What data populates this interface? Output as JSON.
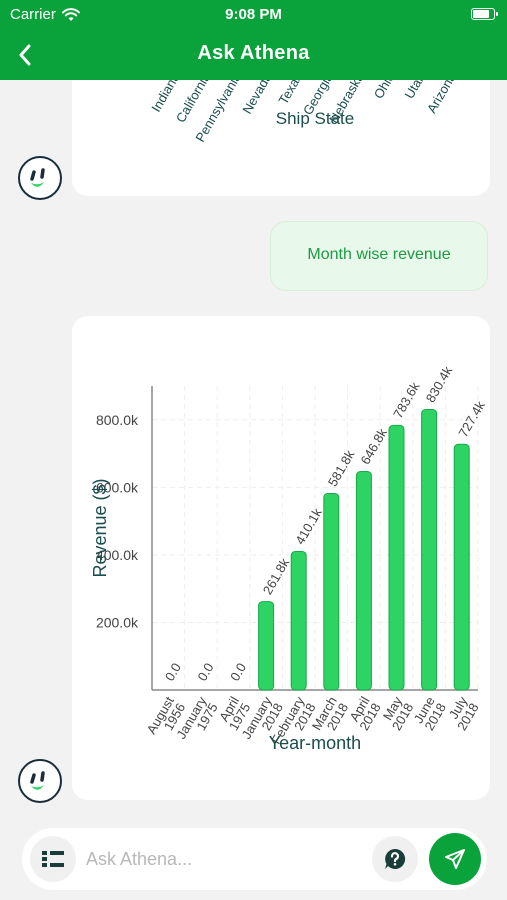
{
  "status_bar": {
    "carrier": "Carrier",
    "time": "9:08 PM",
    "battery_level": 0.85
  },
  "nav": {
    "title": "Ask Athena",
    "back_icon": "chevron-left-icon"
  },
  "colors": {
    "brand": "#0aa23b",
    "bar_fill": "#2ed463",
    "bar_stroke": "#18a847",
    "axis_text": "#1a4d4d"
  },
  "messages": {
    "user_query": "Month wise revenue"
  },
  "top_chart": {
    "type": "bar",
    "xlabel": "Ship State",
    "categories": [
      "Indiana",
      "California",
      "Pennsylvania",
      "Nevada",
      "Texas",
      "Georgia",
      "Nebraska",
      "Ohio",
      "Utah",
      "Arizona"
    ],
    "show_bars": [
      true,
      true,
      true,
      true,
      true,
      true,
      true,
      false,
      false,
      false
    ]
  },
  "chart_data": {
    "type": "bar",
    "categories": [
      "August 1956",
      "January 1975",
      "April 1975",
      "January 2018",
      "February 2018",
      "March 2018",
      "April 2018",
      "May 2018",
      "June 2018",
      "July 2018"
    ],
    "category_lines": [
      [
        "August",
        "1956"
      ],
      [
        "January",
        "1975"
      ],
      [
        "April",
        "1975"
      ],
      [
        "January",
        "2018"
      ],
      [
        "February",
        "2018"
      ],
      [
        "March",
        "2018"
      ],
      [
        "April",
        "2018"
      ],
      [
        "May",
        "2018"
      ],
      [
        "June",
        "2018"
      ],
      [
        "July",
        "2018"
      ]
    ],
    "values": [
      0,
      0,
      0,
      261800,
      410100,
      581800,
      646800,
      783600,
      830400,
      727400
    ],
    "data_labels": [
      "0.0",
      "0.0",
      "0.0",
      "261.8k",
      "410.1k",
      "581.8k",
      "646.8k",
      "783.6k",
      "830.4k",
      "727.4k"
    ],
    "y_ticks": [
      200000,
      400000,
      600000,
      800000
    ],
    "y_tick_labels": [
      "200.0k",
      "400.0k",
      "600.0k",
      "800.0k"
    ],
    "ylim": [
      0,
      900000
    ],
    "xlabel": "Year-month",
    "ylabel": "Revenue ($)",
    "grid": true
  },
  "input": {
    "placeholder": "Ask Athena...",
    "value": ""
  },
  "icons": {
    "menu": "list-icon",
    "help": "question-bubble-icon",
    "send": "send-icon",
    "avatar": "athena-face-icon"
  }
}
